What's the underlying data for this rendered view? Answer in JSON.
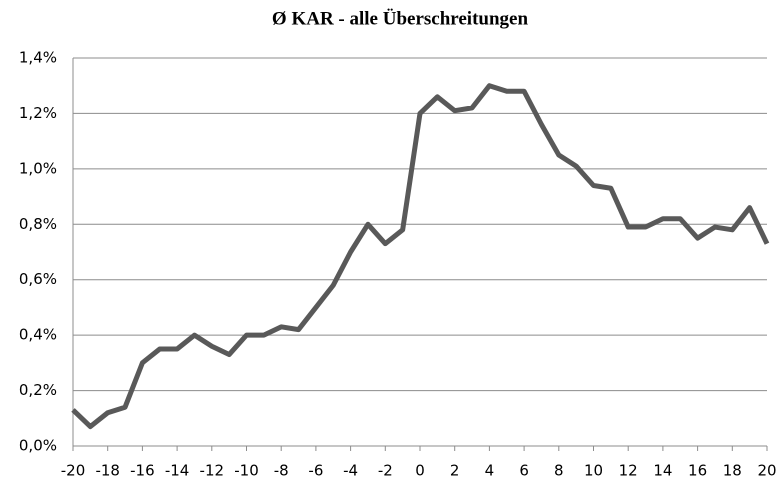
{
  "chart_data": {
    "type": "line",
    "title": "Ø KAR - alle Überschreitungen",
    "x": [
      -20,
      -19,
      -18,
      -17,
      -16,
      -15,
      -14,
      -13,
      -12,
      -11,
      -10,
      -9,
      -8,
      -7,
      -6,
      -5,
      -4,
      -3,
      -2,
      -1,
      0,
      1,
      2,
      3,
      4,
      5,
      6,
      7,
      8,
      9,
      10,
      11,
      12,
      13,
      14,
      15,
      16,
      17,
      18,
      19,
      20
    ],
    "values": [
      0.13,
      0.07,
      0.12,
      0.14,
      0.3,
      0.35,
      0.35,
      0.4,
      0.36,
      0.33,
      0.4,
      0.4,
      0.43,
      0.42,
      0.5,
      0.58,
      0.7,
      0.8,
      0.73,
      0.78,
      1.2,
      1.26,
      1.21,
      1.22,
      1.3,
      1.28,
      1.28,
      1.16,
      1.05,
      1.01,
      0.94,
      0.93,
      0.79,
      0.79,
      0.82,
      0.82,
      0.75,
      0.79,
      0.78,
      0.86,
      0.73
    ],
    "color": "#595959",
    "xlim": [
      -20,
      20
    ],
    "xticks": [
      -20,
      -18,
      -16,
      -14,
      -12,
      -10,
      -8,
      -6,
      -4,
      -2,
      0,
      2,
      4,
      6,
      8,
      10,
      12,
      14,
      16,
      18,
      20
    ],
    "ylim": [
      0,
      1.4
    ],
    "yticks": [
      {
        "value": 0,
        "label": "0,0%"
      },
      {
        "value": 0.2,
        "label": "0,2%"
      },
      {
        "value": 0.4,
        "label": "0,4%"
      },
      {
        "value": 0.6,
        "label": "0,6%"
      },
      {
        "value": 0.8,
        "label": "0,8%"
      },
      {
        "value": 1.0,
        "label": "1,0%"
      },
      {
        "value": 1.2,
        "label": "1,2%"
      },
      {
        "value": 1.4,
        "label": "1,4%"
      }
    ],
    "grid": true
  }
}
